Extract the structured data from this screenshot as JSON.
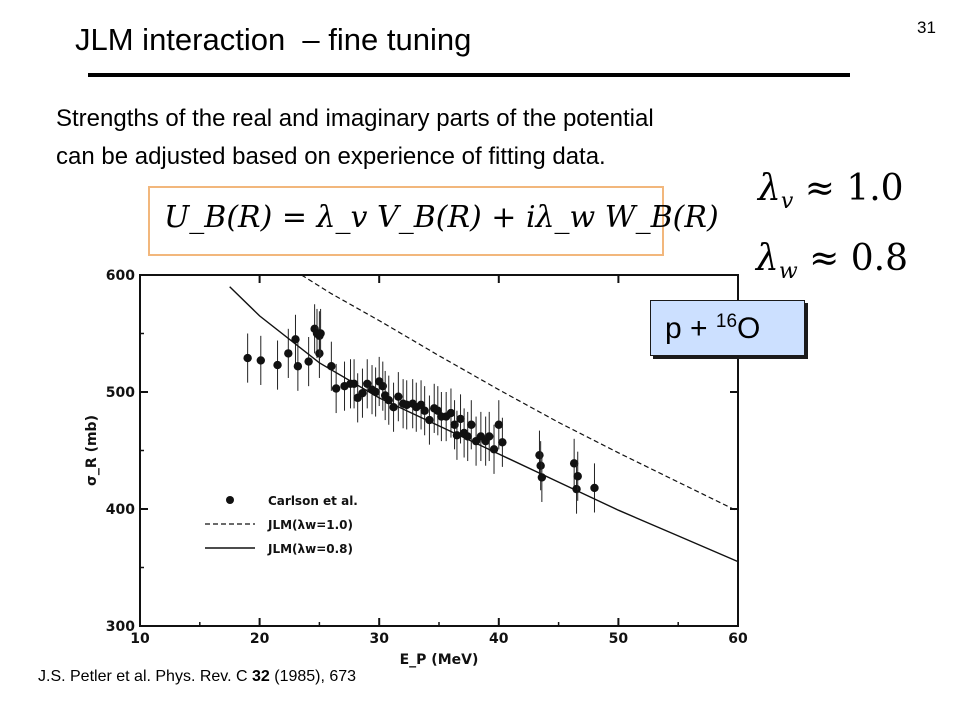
{
  "slide": {
    "title": "JLM interaction  – fine tuning",
    "number": "31",
    "intro_line1": "Strengths of the real and imaginary parts of the potential",
    "intro_line2": "can be adjusted based on experience of fitting data.",
    "equation": "U_B(R) = λ_v V_B(R) + iλ_w W_B(R)",
    "lambda_v": {
      "symbol": "λ",
      "sub": "v",
      "text": " ≈ 1.0"
    },
    "lambda_w": {
      "symbol": "λ",
      "sub": "w",
      "text": " ≈ 0.8"
    },
    "badge": {
      "base": "p + ",
      "superscript": "16",
      "element": "O"
    },
    "citation": {
      "before": "J.S. Petler et al. Phys. Rev. C ",
      "volume": "32",
      "after": " (1985), 673"
    },
    "accent_colors": {
      "equation_border": "#f2b77c",
      "badge_fill": "#cce0ff"
    }
  },
  "chart_data": {
    "type": "scatter",
    "xlabel": "E_P (MeV)",
    "ylabel": "σ_R (mb)",
    "xlim": [
      10,
      60
    ],
    "ylim": [
      300,
      600
    ],
    "xticks": [
      "10",
      "20",
      "30",
      "40",
      "50",
      "60"
    ],
    "yticks": [
      "300",
      "400",
      "500",
      "600"
    ],
    "grid": false,
    "legend_position": "lower-left",
    "legend": [
      "Carlson et al.",
      "JLM(λw=1.0)",
      "JLM(λw=0.8)"
    ],
    "series": [
      {
        "name": "Carlson et al.",
        "kind": "points-with-errorbars",
        "x": [
          19.0,
          20.1,
          21.5,
          22.4,
          23.0,
          23.2,
          24.1,
          24.6,
          24.8,
          25.0,
          25.0,
          25.1,
          26.0,
          26.4,
          27.1,
          27.6,
          27.9,
          28.2,
          28.6,
          29.0,
          29.4,
          29.7,
          30.0,
          30.3,
          30.5,
          30.8,
          31.2,
          31.6,
          32.0,
          32.3,
          32.8,
          33.1,
          33.5,
          33.8,
          34.2,
          34.6,
          34.9,
          35.2,
          35.6,
          36.0,
          36.3,
          36.5,
          36.8,
          37.1,
          37.4,
          37.7,
          38.1,
          38.5,
          38.9,
          39.2,
          39.6,
          40.0,
          40.3,
          43.4,
          43.5,
          43.6,
          46.3,
          46.5,
          46.6,
          48.0
        ],
        "y": [
          529,
          527,
          523,
          533,
          545,
          522,
          526,
          554,
          550,
          533,
          548,
          550,
          522,
          503,
          505,
          507,
          507,
          495,
          499,
          507,
          502,
          500,
          509,
          505,
          497,
          493,
          487,
          496,
          490,
          489,
          490,
          487,
          489,
          484,
          476,
          486,
          484,
          479,
          479,
          482,
          472,
          463,
          477,
          465,
          462,
          472,
          458,
          462,
          458,
          462,
          451,
          472,
          457,
          446,
          437,
          427,
          439,
          417,
          428,
          418
        ],
        "err": [
          21,
          21,
          21,
          21,
          21,
          21,
          21,
          21,
          21,
          21,
          21,
          21,
          21,
          21,
          21,
          21,
          21,
          21,
          21,
          21,
          21,
          21,
          21,
          21,
          21,
          21,
          21,
          21,
          21,
          21,
          21,
          21,
          21,
          21,
          21,
          21,
          21,
          21,
          21,
          21,
          21,
          21,
          21,
          21,
          21,
          21,
          21,
          21,
          21,
          21,
          21,
          21,
          21,
          21,
          21,
          21,
          21,
          21,
          21,
          21
        ]
      },
      {
        "name": "JLM(λw=1.0)",
        "kind": "dashed-line",
        "x": [
          23.5,
          26,
          30,
          35,
          40,
          45,
          50,
          55,
          60
        ],
        "y": [
          600,
          584,
          561,
          531,
          502,
          474,
          448,
          423,
          398
        ]
      },
      {
        "name": "JLM(λw=0.8)",
        "kind": "solid-line",
        "x": [
          17.5,
          20,
          25,
          30,
          35,
          40,
          45,
          50,
          55,
          60
        ],
        "y": [
          590,
          565,
          525,
          495,
          471,
          447,
          423,
          399,
          377,
          355
        ]
      }
    ]
  }
}
